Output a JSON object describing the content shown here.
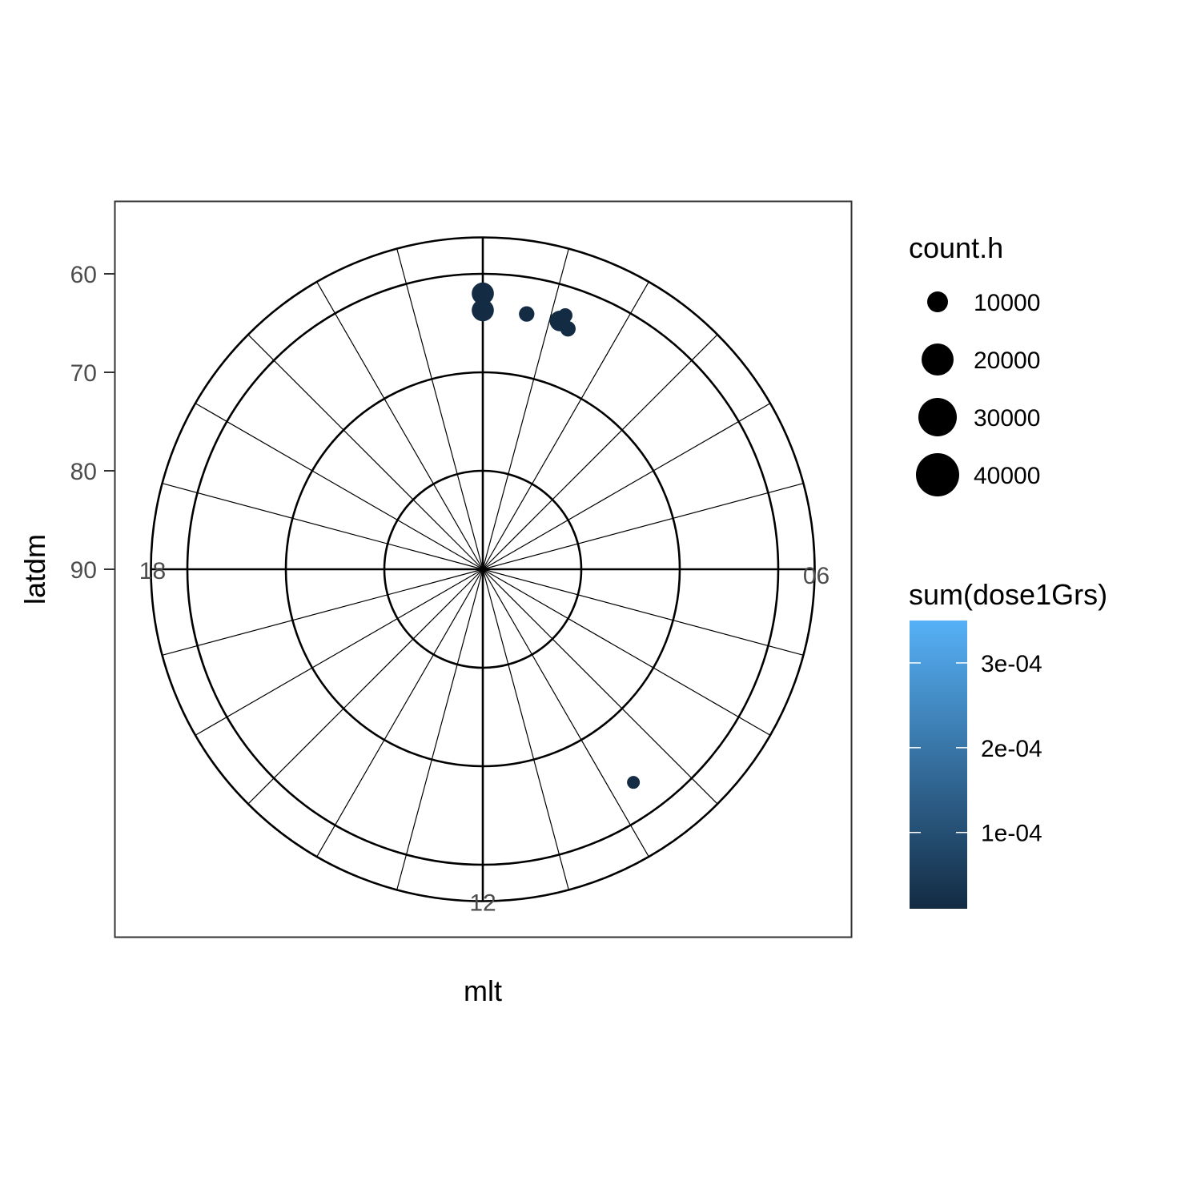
{
  "chart_data": {
    "type": "scatter",
    "projection": "polar",
    "xlabel": "mlt",
    "ylabel": "latdm",
    "y_ticks": [
      60,
      70,
      80,
      90
    ],
    "ylim": [
      56,
      90
    ],
    "mlt_labels": [
      "12",
      "18",
      "06"
    ],
    "mlt_label_hours": [
      12,
      18,
      6
    ],
    "grid": true,
    "ring_latitudes": [
      56.3,
      60,
      70,
      80
    ],
    "spoke_hours": [
      0,
      1,
      2,
      3,
      4,
      5,
      6,
      7,
      8,
      9,
      10,
      11,
      12,
      13,
      14,
      15,
      16,
      17,
      18,
      19,
      20,
      21,
      22,
      23
    ],
    "points": [
      {
        "mlt": 9.65,
        "lat": 63.5,
        "count": 5000,
        "dose": 1e-05
      },
      {
        "mlt": 0.0,
        "lat": 63.7,
        "count": 30000,
        "dose": 1e-05
      },
      {
        "mlt": 0.0,
        "lat": 62.0,
        "count": 30000,
        "dose": 1e-05
      },
      {
        "mlt": 0.65,
        "lat": 63.7,
        "count": 12000,
        "dose": 1e-05
      },
      {
        "mlt": 1.15,
        "lat": 63.6,
        "count": 25000,
        "dose": 1e-05
      },
      {
        "mlt": 1.3,
        "lat": 64.1,
        "count": 12000,
        "dose": 1e-05
      },
      {
        "mlt": 1.2,
        "lat": 62.9,
        "count": 10000,
        "dose": 1e-05
      }
    ],
    "size_legend": {
      "title": "count.h",
      "labels": [
        "10000",
        "20000",
        "30000",
        "40000"
      ],
      "values": [
        10000,
        20000,
        30000,
        40000
      ]
    },
    "color_legend": {
      "title": "sum(dose1Grs)",
      "labels": [
        "3e-04",
        "2e-04",
        "1e-04"
      ],
      "values": [
        0.0003,
        0.0002,
        0.0001
      ],
      "range": [
        1e-05,
        0.00035
      ],
      "low_color": "#132B43",
      "high_color": "#56B1F7"
    }
  }
}
